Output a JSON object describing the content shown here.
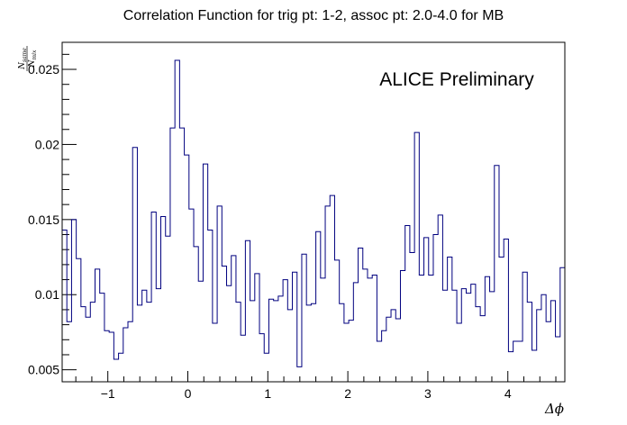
{
  "chart_data": {
    "type": "histogram",
    "title": "Correlation Function for trig pt: 1-2, assoc pt: 2.0-4.0 for MB",
    "watermark": "ALICE Preliminary",
    "xlabel": "Δϕ",
    "ylabel_numerator": "N",
    "ylabel_numerator_sub": "same",
    "ylabel_denominator": "N",
    "ylabel_denominator_sub": "mix",
    "xlim": [
      -1.5708,
      4.7124
    ],
    "ylim": [
      0.0042,
      0.0268
    ],
    "x_ticks": [
      -1,
      0,
      1,
      2,
      3,
      4
    ],
    "x_tick_labels": [
      "−1",
      "0",
      "1",
      "2",
      "3",
      "4"
    ],
    "y_ticks": [
      0.005,
      0.01,
      0.015,
      0.02,
      0.025
    ],
    "y_tick_labels": [
      "0.005",
      "0.01",
      "0.015",
      "0.02",
      "0.025"
    ],
    "line_color": "#00007f",
    "values": [
      0.0143,
      0.0082,
      0.015,
      0.0124,
      0.0092,
      0.0085,
      0.0095,
      0.0117,
      0.0101,
      0.0076,
      0.0075,
      0.0057,
      0.0061,
      0.0078,
      0.0082,
      0.0198,
      0.0093,
      0.0103,
      0.0095,
      0.0155,
      0.0104,
      0.0152,
      0.0139,
      0.0211,
      0.0256,
      0.0211,
      0.0193,
      0.0157,
      0.0132,
      0.0109,
      0.0187,
      0.0143,
      0.0081,
      0.0159,
      0.0119,
      0.0106,
      0.0126,
      0.0095,
      0.0073,
      0.0136,
      0.0096,
      0.0114,
      0.0074,
      0.0061,
      0.0097,
      0.0096,
      0.0099,
      0.011,
      0.009,
      0.0115,
      0.0052,
      0.0127,
      0.0093,
      0.0094,
      0.0142,
      0.0111,
      0.0159,
      0.0166,
      0.0123,
      0.0094,
      0.0081,
      0.0083,
      0.0108,
      0.0131,
      0.0117,
      0.0111,
      0.0113,
      0.0069,
      0.0076,
      0.0085,
      0.009,
      0.0084,
      0.0116,
      0.0146,
      0.0128,
      0.0208,
      0.0113,
      0.0138,
      0.0113,
      0.014,
      0.0153,
      0.0103,
      0.0125,
      0.0103,
      0.0081,
      0.0104,
      0.0101,
      0.0107,
      0.0092,
      0.0086,
      0.0112,
      0.0102,
      0.0186,
      0.0125,
      0.0137,
      0.0062,
      0.0069,
      0.0069,
      0.0115,
      0.0095,
      0.0063,
      0.009,
      0.01,
      0.0082,
      0.0096,
      0.0072,
      0.0118
    ]
  }
}
